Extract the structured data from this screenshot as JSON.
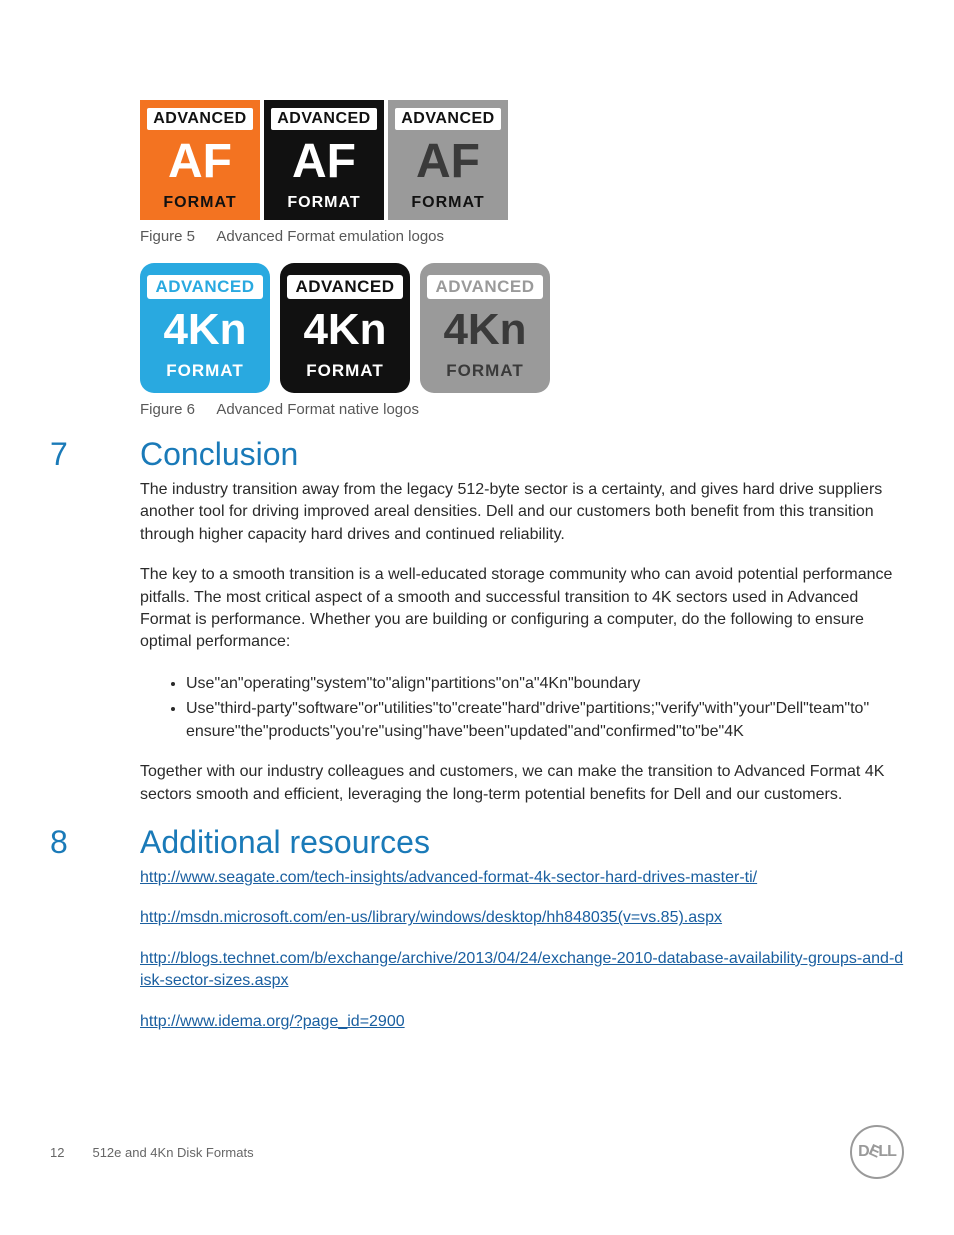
{
  "figure5": {
    "caption_label": "Figure 5",
    "caption_text": "Advanced Format emulation logos",
    "logos": [
      {
        "bg": "#f37321",
        "adv_color": "#111111",
        "mid_color": "#ffffff",
        "fmt_color": "#111111",
        "adv": "ADVANCED",
        "mid": "AF",
        "fmt": "FORMAT"
      },
      {
        "bg": "#111111",
        "adv_color": "#111111",
        "mid_color": "#ffffff",
        "fmt_color": "#ffffff",
        "adv": "ADVANCED",
        "mid": "AF",
        "fmt": "FORMAT"
      },
      {
        "bg": "#9a9a9a",
        "adv_color": "#111111",
        "mid_color": "#3a3a3a",
        "fmt_color": "#111111",
        "adv": "ADVANCED",
        "mid": "AF",
        "fmt": "FORMAT"
      }
    ]
  },
  "figure6": {
    "caption_label": "Figure 6",
    "caption_text": "Advanced Format native logos",
    "logos": [
      {
        "bg": "#29a9e0",
        "adv_color": "#29a9e0",
        "mid_color": "#ffffff",
        "fmt_color": "#ffffff",
        "adv": "ADVANCED",
        "mid": "4Kn",
        "fmt": "FORMAT"
      },
      {
        "bg": "#111111",
        "adv_color": "#111111",
        "mid_color": "#ffffff",
        "fmt_color": "#ffffff",
        "adv": "ADVANCED",
        "mid": "4Kn",
        "fmt": "FORMAT"
      },
      {
        "bg": "#9a9a9a",
        "adv_color": "#9a9a9a",
        "mid_color": "#3a3a3a",
        "fmt_color": "#3a3a3a",
        "adv": "ADVANCED",
        "mid": "4Kn",
        "fmt": "FORMAT"
      }
    ]
  },
  "section7": {
    "num": "7",
    "title": "Conclusion",
    "p1": "The industry transition away from the legacy 512-byte sector is a certainty, and gives hard drive suppliers another tool for driving improved areal densities. Dell and our customers both benefit from this transition through higher capacity hard drives and continued reliability.",
    "p2": "The key to a smooth transition is a well-educated storage community who can avoid potential performance pitfalls. The most critical aspect of a smooth and successful transition to 4K sectors used in Advanced Format is performance. Whether you are building or configuring a computer, do the following to ensure optimal performance:",
    "b1": "Use\"an\"operating\"system\"to\"align\"partitions\"on\"a\"4Kn\"boundary",
    "b2": "Use\"third-party\"software\"or\"utilities\"to\"create\"hard\"drive\"partitions;\"verify\"with\"your\"Dell\"team\"to\" ensure\"the\"products\"you're\"using\"have\"been\"updated\"and\"confirmed\"to\"be\"4K",
    "p3": "Together with our industry colleagues and customers, we can make the transition to Advanced Format 4K sectors smooth and efficient, leveraging the long-term potential benefits for Dell and our customers."
  },
  "section8": {
    "num": "8",
    "title": "Additional resources",
    "links": [
      "http://www.seagate.com/tech-insights/advanced-format-4k-sector-hard-drives-master-ti/",
      "http://msdn.microsoft.com/en-us/library/windows/desktop/hh848035(v=vs.85).aspx",
      "http://blogs.technet.com/b/exchange/archive/2013/04/24/exchange-2010-database-availability-groups-and-disk-sector-sizes.aspx",
      "http://www.idema.org/?page_id=2900"
    ]
  },
  "footer": {
    "page": "12",
    "doc_title": "512e and 4Kn Disk Formats"
  }
}
